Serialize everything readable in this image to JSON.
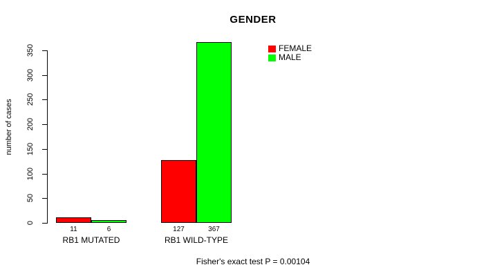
{
  "chart_data": {
    "type": "bar",
    "title": "GENDER",
    "xlabel": "",
    "ylabel": "number of cases",
    "ylim": [
      0,
      350
    ],
    "yticks": [
      0,
      50,
      100,
      150,
      200,
      250,
      300,
      350
    ],
    "categories": [
      "RB1 MUTATED",
      "RB1 WILD-TYPE"
    ],
    "series": [
      {
        "name": "FEMALE",
        "color": "#ff0000",
        "values": [
          11,
          127
        ]
      },
      {
        "name": "MALE",
        "color": "#00ff00",
        "values": [
          6,
          367
        ]
      }
    ],
    "bar_value_labels": [
      [
        "11",
        "6"
      ],
      [
        "127",
        "367"
      ]
    ],
    "annotation": "Fisher's exact test P = 0.00104",
    "legend_position": "top-right",
    "grid": false,
    "background": "#ffffff",
    "bar_border_color": "#000000",
    "axis_color": "#000000"
  }
}
